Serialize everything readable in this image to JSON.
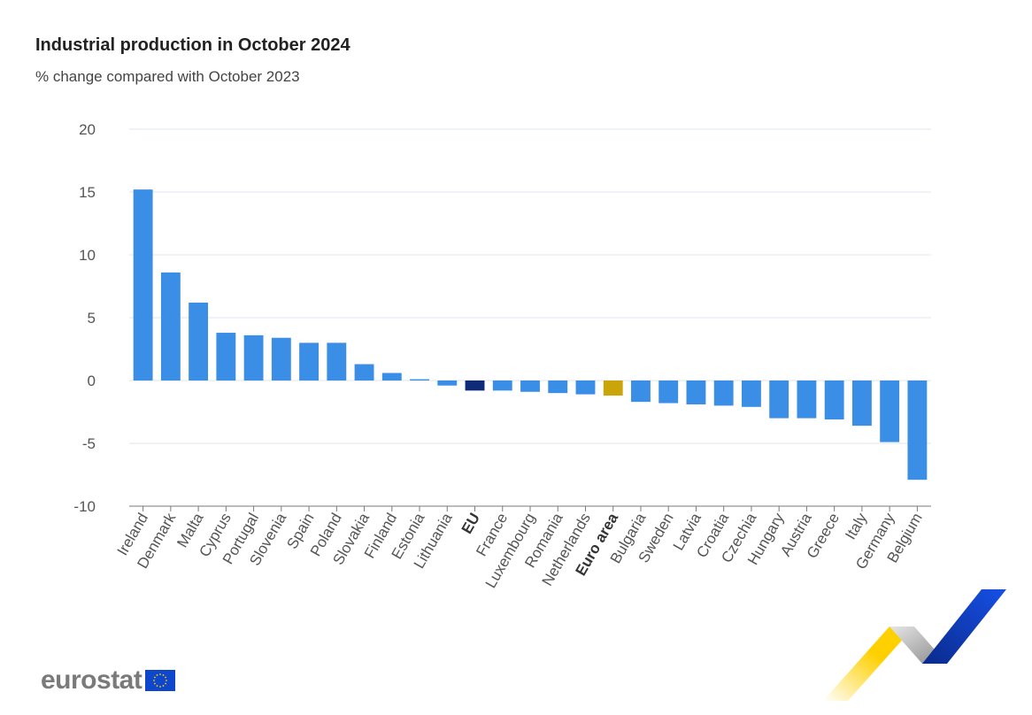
{
  "chart_data": {
    "type": "bar",
    "title": "Industrial production in October 2024",
    "subtitle": "% change compared with October 2023",
    "xlabel": "",
    "ylabel": "",
    "ylim": [
      -10,
      20
    ],
    "yticks": [
      20,
      15,
      10,
      5,
      0,
      -5,
      -10
    ],
    "grid": true,
    "legend": "none",
    "categories": [
      "Ireland",
      "Denmark",
      "Malta",
      "Cyprus",
      "Portugal",
      "Slovenia",
      "Spain",
      "Poland",
      "Slovakia",
      "Finland",
      "Estonia",
      "Lithuania",
      "EU",
      "France",
      "Luxembourg",
      "Romania",
      "Netherlands",
      "Euro area",
      "Bulgaria",
      "Sweden",
      "Latvia",
      "Croatia",
      "Czechia",
      "Hungary",
      "Austria",
      "Greece",
      "Italy",
      "Germany",
      "Belgium"
    ],
    "values": [
      15.2,
      8.6,
      6.2,
      3.8,
      3.6,
      3.4,
      3.0,
      3.0,
      1.3,
      0.6,
      0.1,
      -0.4,
      -0.8,
      -0.8,
      -0.9,
      -1.0,
      -1.1,
      -1.2,
      -1.7,
      -1.8,
      -1.9,
      -2.0,
      -2.1,
      -3.0,
      -3.0,
      -3.1,
      -3.6,
      -4.9,
      -7.9
    ],
    "highlight": {
      "EU": "#0e2a78",
      "Euro area": "#c9a50a"
    },
    "bold_categories": [
      "EU",
      "Euro area"
    ]
  },
  "colors": {
    "bar": "#3b8ee6",
    "grid": "#dfe6ee",
    "axis": "#7a7a7a",
    "tick_text": "#555555"
  },
  "branding": {
    "logo_text": "eurostat",
    "flag_icon": "eu-flag-icon"
  }
}
